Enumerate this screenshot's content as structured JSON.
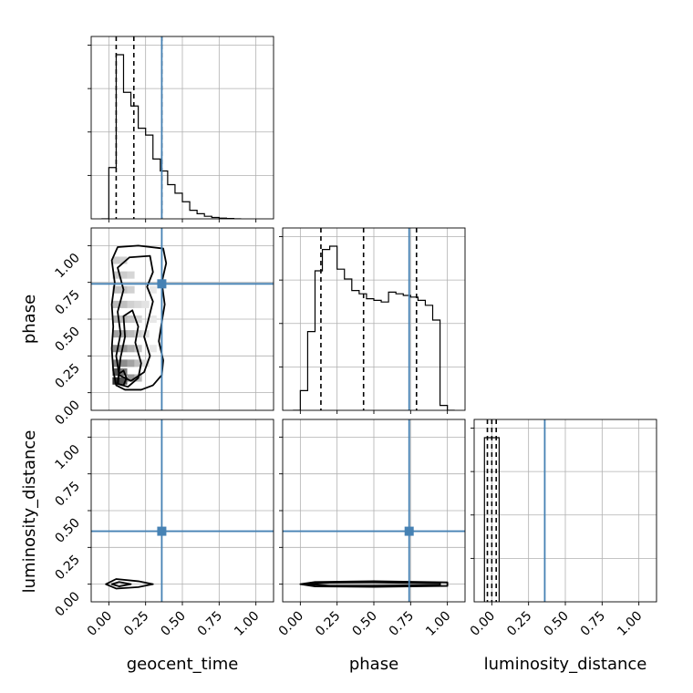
{
  "chart_data": {
    "type": "corner",
    "parameters": [
      "geocent_time",
      "phase",
      "luminosity_distance"
    ],
    "tick_labels": [
      "0.00",
      "0.25",
      "0.50",
      "0.75",
      "1.00"
    ],
    "axis_ranges": {
      "geocent_time": [
        -0.12,
        1.12
      ],
      "phase": [
        -0.12,
        1.12
      ],
      "luminosity_distance": [
        -0.12,
        1.12
      ]
    },
    "grid": true,
    "colors": {
      "truth": "#4682b4",
      "hist": "#000000",
      "grid": "#b0b0b0"
    },
    "truths": {
      "geocent_time": 0.36,
      "phase": 0.74,
      "luminosity_distance": 0.36
    },
    "histograms": {
      "geocent_time": {
        "edges": [
          -0.05,
          0.0,
          0.05,
          0.1,
          0.15,
          0.2,
          0.25,
          0.3,
          0.35,
          0.4,
          0.45,
          0.5,
          0.55,
          0.6,
          0.65,
          0.7,
          0.75,
          0.8,
          0.85,
          0.9
        ],
        "counts": [
          0.0,
          0.3,
          0.96,
          0.74,
          0.66,
          0.53,
          0.49,
          0.35,
          0.28,
          0.2,
          0.15,
          0.1,
          0.05,
          0.03,
          0.015,
          0.008,
          0.004,
          0.002,
          0.0
        ],
        "quantiles": [
          0.05,
          0.17,
          0.36
        ]
      },
      "phase": {
        "edges": [
          -0.05,
          0.0,
          0.05,
          0.1,
          0.15,
          0.2,
          0.25,
          0.3,
          0.35,
          0.4,
          0.45,
          0.5,
          0.55,
          0.6,
          0.65,
          0.7,
          0.75,
          0.8,
          0.85,
          0.9,
          0.95,
          1.0,
          1.05
        ],
        "counts": [
          0.0,
          0.12,
          0.48,
          0.85,
          0.98,
          1.0,
          0.86,
          0.8,
          0.73,
          0.71,
          0.68,
          0.67,
          0.66,
          0.72,
          0.71,
          0.7,
          0.69,
          0.67,
          0.64,
          0.55,
          0.03,
          0.0
        ],
        "quantiles": [
          0.14,
          0.43,
          0.79
        ]
      },
      "luminosity_distance": {
        "edges": [
          -0.05,
          0.0,
          0.05
        ],
        "counts": [
          1.0,
          1.0
        ],
        "quantiles": [
          -0.03,
          0.0,
          0.03
        ]
      }
    },
    "joint": {
      "geocent_time_phase": {
        "contours": [
          [
            [
              0.11,
              0.02
            ],
            [
              0.22,
              0.02
            ],
            [
              0.3,
              0.05
            ],
            [
              0.36,
              0.12
            ],
            [
              0.37,
              0.22
            ],
            [
              0.34,
              0.35
            ],
            [
              0.36,
              0.48
            ],
            [
              0.38,
              0.6
            ],
            [
              0.36,
              0.75
            ],
            [
              0.39,
              0.88
            ],
            [
              0.37,
              0.98
            ],
            [
              0.2,
              1.0
            ],
            [
              0.06,
              0.99
            ],
            [
              0.02,
              0.9
            ],
            [
              0.04,
              0.75
            ],
            [
              0.02,
              0.6
            ],
            [
              0.03,
              0.45
            ],
            [
              0.02,
              0.3
            ],
            [
              0.03,
              0.15
            ],
            [
              0.05,
              0.05
            ]
          ],
          [
            [
              0.07,
              0.12
            ],
            [
              0.15,
              0.08
            ],
            [
              0.24,
              0.14
            ],
            [
              0.28,
              0.25
            ],
            [
              0.24,
              0.38
            ],
            [
              0.27,
              0.5
            ],
            [
              0.3,
              0.62
            ],
            [
              0.26,
              0.72
            ],
            [
              0.3,
              0.82
            ],
            [
              0.28,
              0.93
            ],
            [
              0.14,
              0.92
            ],
            [
              0.06,
              0.85
            ],
            [
              0.1,
              0.7
            ],
            [
              0.06,
              0.55
            ],
            [
              0.08,
              0.4
            ],
            [
              0.05,
              0.25
            ]
          ],
          [
            [
              0.06,
              0.06
            ],
            [
              0.13,
              0.04
            ],
            [
              0.2,
              0.1
            ],
            [
              0.22,
              0.2
            ],
            [
              0.18,
              0.34
            ],
            [
              0.2,
              0.45
            ],
            [
              0.16,
              0.56
            ],
            [
              0.1,
              0.52
            ],
            [
              0.11,
              0.38
            ],
            [
              0.08,
              0.24
            ]
          ],
          [
            [
              0.06,
              0.06
            ],
            [
              0.1,
              0.05
            ],
            [
              0.12,
              0.1
            ],
            [
              0.1,
              0.15
            ],
            [
              0.07,
              0.13
            ]
          ]
        ],
        "density": [
          [
            0.05,
            0.08,
            0.9
          ],
          [
            0.05,
            0.14,
            0.75
          ],
          [
            0.05,
            0.2,
            0.55
          ],
          [
            0.1,
            0.08,
            0.75
          ],
          [
            0.1,
            0.14,
            0.6
          ],
          [
            0.1,
            0.2,
            0.5
          ],
          [
            0.1,
            0.3,
            0.45
          ],
          [
            0.05,
            0.3,
            0.5
          ],
          [
            0.05,
            0.4,
            0.4
          ],
          [
            0.1,
            0.4,
            0.38
          ],
          [
            0.15,
            0.1,
            0.45
          ],
          [
            0.15,
            0.2,
            0.4
          ],
          [
            0.15,
            0.3,
            0.35
          ],
          [
            0.15,
            0.4,
            0.3
          ],
          [
            0.05,
            0.5,
            0.32
          ],
          [
            0.1,
            0.5,
            0.3
          ],
          [
            0.05,
            0.6,
            0.3
          ],
          [
            0.1,
            0.6,
            0.28
          ],
          [
            0.15,
            0.5,
            0.25
          ],
          [
            0.2,
            0.1,
            0.3
          ],
          [
            0.2,
            0.2,
            0.28
          ],
          [
            0.2,
            0.3,
            0.25
          ],
          [
            0.05,
            0.7,
            0.27
          ],
          [
            0.1,
            0.7,
            0.26
          ],
          [
            0.05,
            0.8,
            0.24
          ],
          [
            0.1,
            0.8,
            0.22
          ],
          [
            0.05,
            0.9,
            0.22
          ],
          [
            0.1,
            0.9,
            0.2
          ],
          [
            0.15,
            0.6,
            0.2
          ],
          [
            0.15,
            0.7,
            0.2
          ],
          [
            0.15,
            0.8,
            0.18
          ],
          [
            0.2,
            0.4,
            0.2
          ],
          [
            0.2,
            0.5,
            0.18
          ],
          [
            0.2,
            0.6,
            0.16
          ],
          [
            0.25,
            0.2,
            0.15
          ],
          [
            0.25,
            0.4,
            0.14
          ],
          [
            0.25,
            0.6,
            0.12
          ],
          [
            0.3,
            0.3,
            0.1
          ],
          [
            0.3,
            0.5,
            0.1
          ],
          [
            0.3,
            0.7,
            0.1
          ]
        ]
      },
      "geocent_time_luminosity_distance": {
        "contours": [
          [
            [
              -0.02,
              0.0
            ],
            [
              0.05,
              0.035
            ],
            [
              0.2,
              0.02
            ],
            [
              0.3,
              0.0
            ],
            [
              0.2,
              -0.02
            ],
            [
              0.05,
              -0.03
            ]
          ],
          [
            [
              0.02,
              0.0
            ],
            [
              0.07,
              0.015
            ],
            [
              0.15,
              0.0
            ],
            [
              0.07,
              -0.015
            ]
          ]
        ]
      },
      "phase_luminosity_distance": {
        "contours": [
          [
            [
              0.0,
              0.0
            ],
            [
              0.1,
              0.015
            ],
            [
              0.5,
              0.02
            ],
            [
              1.0,
              0.012
            ],
            [
              1.0,
              -0.012
            ],
            [
              0.5,
              -0.018
            ],
            [
              0.1,
              -0.015
            ]
          ],
          [
            [
              0.02,
              0.0
            ],
            [
              0.2,
              0.01
            ],
            [
              0.5,
              0.012
            ],
            [
              0.95,
              0.006
            ],
            [
              0.95,
              -0.006
            ],
            [
              0.5,
              -0.01
            ],
            [
              0.2,
              -0.01
            ]
          ]
        ]
      }
    }
  }
}
